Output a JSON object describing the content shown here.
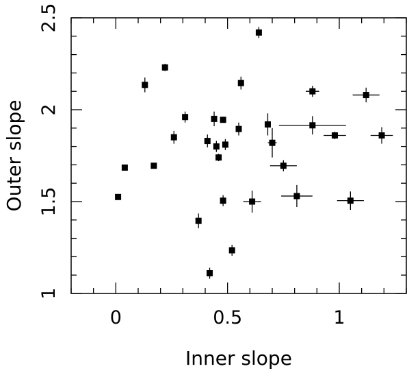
{
  "chart_data": {
    "type": "scatter",
    "xlabel": "Inner slope",
    "ylabel": "Outer slope",
    "xlim": [
      -0.2,
      1.3
    ],
    "ylim": [
      1.0,
      2.5
    ],
    "x_ticks": [
      0,
      0.5,
      1
    ],
    "x_tick_labels": [
      "0",
      "0.5",
      "1"
    ],
    "y_ticks": [
      1,
      1.5,
      2,
      2.5
    ],
    "y_tick_labels": [
      "1",
      "1.5",
      "2",
      "2.5"
    ],
    "grid": false,
    "marker_color": "#000000",
    "points": [
      {
        "x": 0.01,
        "y": 1.525,
        "xerr": 0,
        "yerr": 0
      },
      {
        "x": 0.04,
        "y": 1.685,
        "xerr": 0,
        "yerr": 0
      },
      {
        "x": 0.13,
        "y": 2.135,
        "xerr": 0,
        "yerr": 0.04
      },
      {
        "x": 0.17,
        "y": 1.695,
        "xerr": 0,
        "yerr": 0
      },
      {
        "x": 0.22,
        "y": 2.23,
        "xerr": 0,
        "yerr": 0.02
      },
      {
        "x": 0.26,
        "y": 1.85,
        "xerr": 0,
        "yerr": 0.035
      },
      {
        "x": 0.31,
        "y": 1.96,
        "xerr": 0,
        "yerr": 0.03
      },
      {
        "x": 0.37,
        "y": 1.395,
        "xerr": 0,
        "yerr": 0.04
      },
      {
        "x": 0.41,
        "y": 1.83,
        "xerr": 0,
        "yerr": 0.035
      },
      {
        "x": 0.42,
        "y": 1.11,
        "xerr": 0,
        "yerr": 0.03
      },
      {
        "x": 0.44,
        "y": 1.95,
        "xerr": 0,
        "yerr": 0.04
      },
      {
        "x": 0.45,
        "y": 1.8,
        "xerr": 0,
        "yerr": 0.03
      },
      {
        "x": 0.46,
        "y": 1.74,
        "xerr": 0,
        "yerr": 0.02
      },
      {
        "x": 0.48,
        "y": 1.945,
        "xerr": 0,
        "yerr": 0
      },
      {
        "x": 0.48,
        "y": 1.505,
        "xerr": 0,
        "yerr": 0.03
      },
      {
        "x": 0.49,
        "y": 1.81,
        "xerr": 0,
        "yerr": 0.03
      },
      {
        "x": 0.52,
        "y": 1.235,
        "xerr": 0,
        "yerr": 0.03
      },
      {
        "x": 0.55,
        "y": 1.895,
        "xerr": 0,
        "yerr": 0.035
      },
      {
        "x": 0.56,
        "y": 2.145,
        "xerr": 0,
        "yerr": 0.035
      },
      {
        "x": 0.61,
        "y": 1.5,
        "xerr": 0.04,
        "yerr": 0.06
      },
      {
        "x": 0.64,
        "y": 2.42,
        "xerr": 0,
        "yerr": 0.03
      },
      {
        "x": 0.68,
        "y": 1.92,
        "xerr": 0,
        "yerr": 0.06
      },
      {
        "x": 0.7,
        "y": 1.82,
        "xerr": 0.02,
        "yerr": 0.08
      },
      {
        "x": 0.75,
        "y": 1.695,
        "xerr": 0.06,
        "yerr": 0.03
      },
      {
        "x": 0.81,
        "y": 1.53,
        "xerr": 0.07,
        "yerr": 0.06
      },
      {
        "x": 0.88,
        "y": 2.1,
        "xerr": 0.03,
        "yerr": 0.03
      },
      {
        "x": 0.88,
        "y": 1.915,
        "xerr": 0.15,
        "yerr": 0.05
      },
      {
        "x": 0.98,
        "y": 1.86,
        "xerr": 0.05,
        "yerr": 0.02
      },
      {
        "x": 1.05,
        "y": 1.505,
        "xerr": 0.06,
        "yerr": 0.05
      },
      {
        "x": 1.12,
        "y": 2.08,
        "xerr": 0.06,
        "yerr": 0.04
      },
      {
        "x": 1.19,
        "y": 1.86,
        "xerr": 0.05,
        "yerr": 0.045
      }
    ]
  }
}
